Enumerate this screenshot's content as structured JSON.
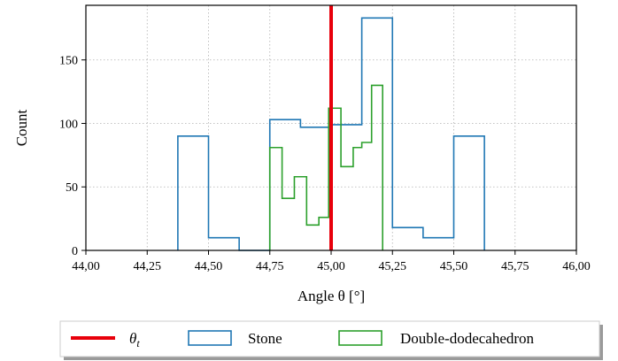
{
  "chart_data": {
    "type": "histogram",
    "xlabel": "Angle θ [°]",
    "ylabel": "Count",
    "xlim": [
      44.0,
      46.0
    ],
    "ylim": [
      0,
      193
    ],
    "x_ticks": [
      44.0,
      44.25,
      44.5,
      44.75,
      45.0,
      45.25,
      45.5,
      45.75,
      46.0
    ],
    "x_tick_labels": [
      "44,00",
      "44,25",
      "44,50",
      "44,75",
      "45,00",
      "45,25",
      "45,50",
      "45,75",
      "46,00"
    ],
    "y_ticks": [
      0,
      50,
      100,
      150
    ],
    "y_tick_labels": [
      "0",
      "50",
      "100",
      "150"
    ],
    "grid": true,
    "legend_position": "below the plot",
    "vertical_line": {
      "name": "θt",
      "x": 45.0,
      "color": "#e8000b"
    },
    "series": [
      {
        "name": "Stone",
        "color": "#1f77b4",
        "bins": [
          {
            "start": 44.375,
            "end": 44.5,
            "count": 90
          },
          {
            "start": 44.5,
            "end": 44.625,
            "count": 10
          },
          {
            "start": 44.625,
            "end": 44.75,
            "count": 0
          },
          {
            "start": 44.75,
            "end": 44.875,
            "count": 103
          },
          {
            "start": 44.875,
            "end": 45.0,
            "count": 97
          },
          {
            "start": 45.0,
            "end": 45.125,
            "count": 99
          },
          {
            "start": 45.125,
            "end": 45.25,
            "count": 183
          },
          {
            "start": 45.25,
            "end": 45.375,
            "count": 18
          },
          {
            "start": 45.375,
            "end": 45.5,
            "count": 10
          },
          {
            "start": 45.5,
            "end": 45.625,
            "count": 90
          }
        ]
      },
      {
        "name": "Double-dodecahedron",
        "color": "#2ca02c",
        "bins": [
          {
            "start": 44.75,
            "end": 44.8,
            "count": 81
          },
          {
            "start": 44.8,
            "end": 44.85,
            "count": 41
          },
          {
            "start": 44.85,
            "end": 44.9,
            "count": 58
          },
          {
            "start": 44.9,
            "end": 44.95,
            "count": 20
          },
          {
            "start": 44.95,
            "end": 44.99,
            "count": 26
          },
          {
            "start": 44.99,
            "end": 45.04,
            "count": 112
          },
          {
            "start": 45.04,
            "end": 45.09,
            "count": 66
          },
          {
            "start": 45.09,
            "end": 45.125,
            "count": 81
          },
          {
            "start": 45.125,
            "end": 45.165,
            "count": 85
          },
          {
            "start": 45.165,
            "end": 45.21,
            "count": 130
          }
        ]
      }
    ]
  },
  "legend": {
    "line_label_main": "θ",
    "line_label_sub": "t",
    "stone_label": "Stone",
    "dd_label": "Double-dodecahedron"
  }
}
